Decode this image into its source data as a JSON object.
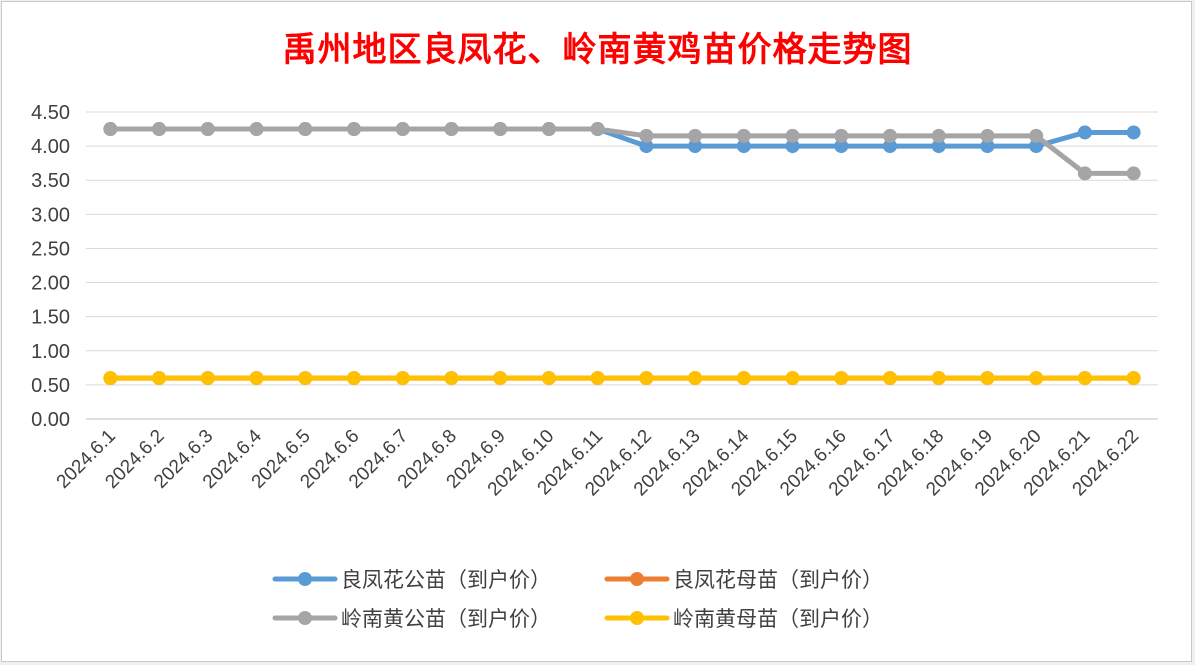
{
  "chart_data": {
    "type": "line",
    "title": "禹州地区良凤花、岭南黄鸡苗价格走势图",
    "xlabel": "",
    "ylabel": "",
    "ylim": [
      0,
      4.5
    ],
    "yticks": [
      "0.00",
      "0.50",
      "1.00",
      "1.50",
      "2.00",
      "2.50",
      "3.00",
      "3.50",
      "4.00",
      "4.50"
    ],
    "grid": true,
    "legend_position": "bottom",
    "categories": [
      "2024.6.1",
      "2024.6.2",
      "2024.6.3",
      "2024.6.4",
      "2024.6.5",
      "2024.6.6",
      "2024.6.7",
      "2024.6.8",
      "2024.6.9",
      "2024.6.10",
      "2024.6.11",
      "2024.6.12",
      "2024.6.13",
      "2024.6.14",
      "2024.6.15",
      "2024.6.16",
      "2024.6.17",
      "2024.6.18",
      "2024.6.19",
      "2024.6.20",
      "2024.6.21",
      "2024.6.22"
    ],
    "series": [
      {
        "name": "良凤花公苗（到户价）",
        "color": "#5b9bd5",
        "values": [
          4.25,
          4.25,
          4.25,
          4.25,
          4.25,
          4.25,
          4.25,
          4.25,
          4.25,
          4.25,
          4.25,
          4.0,
          4.0,
          4.0,
          4.0,
          4.0,
          4.0,
          4.0,
          4.0,
          4.0,
          4.2,
          4.2
        ]
      },
      {
        "name": "良凤花母苗（到户价）",
        "color": "#ed7d31",
        "values": [
          0.6,
          0.6,
          0.6,
          0.6,
          0.6,
          0.6,
          0.6,
          0.6,
          0.6,
          0.6,
          0.6,
          0.6,
          0.6,
          0.6,
          0.6,
          0.6,
          0.6,
          0.6,
          0.6,
          0.6,
          0.6,
          0.6
        ]
      },
      {
        "name": "岭南黄公苗（到户价）",
        "color": "#a5a5a5",
        "values": [
          4.25,
          4.25,
          4.25,
          4.25,
          4.25,
          4.25,
          4.25,
          4.25,
          4.25,
          4.25,
          4.25,
          4.15,
          4.15,
          4.15,
          4.15,
          4.15,
          4.15,
          4.15,
          4.15,
          4.15,
          3.6,
          3.6
        ]
      },
      {
        "name": "岭南黄母苗（到户价）",
        "color": "#ffc000",
        "values": [
          0.6,
          0.6,
          0.6,
          0.6,
          0.6,
          0.6,
          0.6,
          0.6,
          0.6,
          0.6,
          0.6,
          0.6,
          0.6,
          0.6,
          0.6,
          0.6,
          0.6,
          0.6,
          0.6,
          0.6,
          0.6,
          0.6
        ]
      }
    ]
  }
}
